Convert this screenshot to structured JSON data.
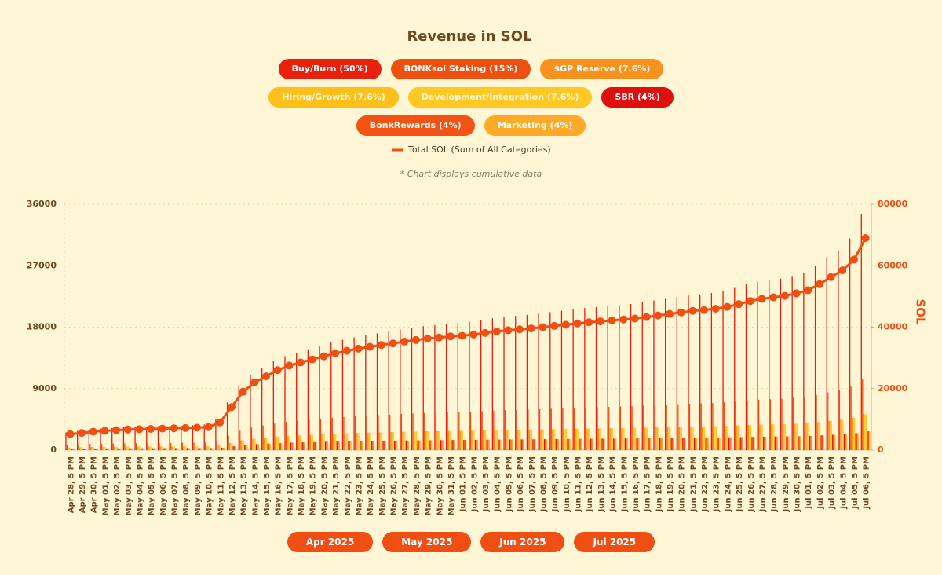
{
  "chart_data": {
    "type": "bar",
    "title": "Revenue in SOL",
    "note": "* Chart displays cumulative data",
    "y2_label": "SOL",
    "categories": [
      "Apr 28, 5 PM",
      "Apr 29, 5 PM",
      "Apr 30, 5 PM",
      "May 01, 5 PM",
      "May 02, 5 PM",
      "May 03, 5 PM",
      "May 04, 5 PM",
      "May 05, 5 PM",
      "May 06, 5 PM",
      "May 07, 5 PM",
      "May 08, 5 PM",
      "May 09, 5 PM",
      "May 10, 5 PM",
      "May 11, 5 PM",
      "May 12, 5 PM",
      "May 13, 5 PM",
      "May 14, 5 PM",
      "May 15, 5 PM",
      "May 16, 5 PM",
      "May 17, 5 PM",
      "May 18, 5 PM",
      "May 19, 5 PM",
      "May 20, 5 PM",
      "May 21, 5 PM",
      "May 22, 5 PM",
      "May 23, 5 PM",
      "May 24, 5 PM",
      "May 25, 5 PM",
      "May 26, 5 PM",
      "May 27, 5 PM",
      "May 28, 5 PM",
      "May 29, 5 PM",
      "May 30, 5 PM",
      "May 31, 5 PM",
      "Jun 01, 5 PM",
      "Jun 02, 5 PM",
      "Jun 03, 5 PM",
      "Jun 04, 5 PM",
      "Jun 05, 5 PM",
      "Jun 06, 5 PM",
      "Jun 07, 5 PM",
      "Jun 08, 5 PM",
      "Jun 09, 5 PM",
      "Jun 10, 5 PM",
      "Jun 11, 5 PM",
      "Jun 12, 5 PM",
      "Jun 13, 5 PM",
      "Jun 14, 5 PM",
      "Jun 15, 5 PM",
      "Jun 16, 5 PM",
      "Jun 17, 5 PM",
      "Jun 18, 5 PM",
      "Jun 19, 5 PM",
      "Jun 20, 5 PM",
      "Jun 21, 5 PM",
      "Jun 22, 5 PM",
      "Jun 23, 5 PM",
      "Jun 24, 5 PM",
      "Jun 25, 5 PM",
      "Jun 26, 5 PM",
      "Jun 27, 5 PM",
      "Jun 28, 5 PM",
      "Jun 29, 5 PM",
      "Jun 30, 5 PM",
      "Jul 01, 5 PM",
      "Jul 02, 5 PM",
      "Jul 03, 5 PM",
      "Jul 04, 5 PM",
      "Jul 05, 5 PM",
      "Jul 06, 5 PM"
    ],
    "series": [
      {
        "name": "Buy/Burn (50%)",
        "color": "#e8200c",
        "values": [
          2600,
          2800,
          3000,
          3150,
          3250,
          3350,
          3400,
          3450,
          3500,
          3550,
          3600,
          3650,
          3750,
          4500,
          7000,
          9500,
          11000,
          12000,
          13000,
          13750,
          14250,
          14750,
          15250,
          15750,
          16150,
          16500,
          16800,
          17100,
          17350,
          17650,
          17900,
          18150,
          18300,
          18500,
          18600,
          18800,
          19050,
          19300,
          19500,
          19650,
          19800,
          20000,
          20200,
          20400,
          20600,
          20800,
          20950,
          21100,
          21250,
          21400,
          21650,
          21900,
          22150,
          22400,
          22650,
          22800,
          23000,
          23300,
          23750,
          24250,
          24600,
          24850,
          25100,
          25500,
          26000,
          27000,
          28150,
          29250,
          31000,
          34500
        ]
      },
      {
        "name": "BONKsol Staking (15%)",
        "color": "#f0500f",
        "values": [
          780,
          840,
          900,
          945,
          975,
          1005,
          1020,
          1035,
          1050,
          1065,
          1080,
          1095,
          1125,
          1350,
          2100,
          2850,
          3300,
          3600,
          3900,
          4125,
          4275,
          4425,
          4575,
          4725,
          4845,
          4950,
          5040,
          5130,
          5205,
          5295,
          5370,
          5445,
          5490,
          5550,
          5580,
          5640,
          5715,
          5790,
          5850,
          5895,
          5940,
          6000,
          6060,
          6120,
          6180,
          6240,
          6285,
          6330,
          6375,
          6420,
          6495,
          6570,
          6645,
          6720,
          6795,
          6840,
          6900,
          6990,
          7125,
          7275,
          7380,
          7455,
          7530,
          7650,
          7800,
          8100,
          8445,
          8775,
          9300,
          10350
        ]
      },
      {
        "name": "$GP Reserve (7.6%)",
        "color": "#f7921e",
        "values": [
          395,
          426,
          456,
          479,
          494,
          509,
          517,
          524,
          532,
          540,
          547,
          555,
          570,
          684,
          1064,
          1444,
          1672,
          1824,
          1976,
          2090,
          2166,
          2242,
          2318,
          2394,
          2455,
          2508,
          2554,
          2599,
          2637,
          2683,
          2721,
          2759,
          2782,
          2812,
          2827,
          2858,
          2896,
          2934,
          2964,
          2987,
          3010,
          3040,
          3070,
          3101,
          3131,
          3162,
          3184,
          3207,
          3230,
          3253,
          3291,
          3329,
          3367,
          3405,
          3443,
          3466,
          3496,
          3542,
          3610,
          3686,
          3739,
          3777,
          3815,
          3876,
          3952,
          4104,
          4279,
          4446,
          4712,
          5244
        ]
      },
      {
        "name": "Hiring/Growth (7.6%)",
        "color": "#fdc01b",
        "values": [
          395,
          426,
          456,
          479,
          494,
          509,
          517,
          524,
          532,
          540,
          547,
          555,
          570,
          684,
          1064,
          1444,
          1672,
          1824,
          1976,
          2090,
          2166,
          2242,
          2318,
          2394,
          2455,
          2508,
          2554,
          2599,
          2637,
          2683,
          2721,
          2759,
          2782,
          2812,
          2827,
          2858,
          2896,
          2934,
          2964,
          2987,
          3010,
          3040,
          3070,
          3101,
          3131,
          3162,
          3184,
          3207,
          3230,
          3253,
          3291,
          3329,
          3367,
          3405,
          3443,
          3466,
          3496,
          3542,
          3610,
          3686,
          3739,
          3777,
          3815,
          3876,
          3952,
          4104,
          4279,
          4446,
          4712,
          5244
        ]
      },
      {
        "name": "Development/Integration (7.6%)",
        "color": "#ffc823",
        "values": [
          395,
          426,
          456,
          479,
          494,
          509,
          517,
          524,
          532,
          540,
          547,
          555,
          570,
          684,
          1064,
          1444,
          1672,
          1824,
          1976,
          2090,
          2166,
          2242,
          2318,
          2394,
          2455,
          2508,
          2554,
          2599,
          2637,
          2683,
          2721,
          2759,
          2782,
          2812,
          2827,
          2858,
          2896,
          2934,
          2964,
          2987,
          3010,
          3040,
          3070,
          3101,
          3131,
          3162,
          3184,
          3207,
          3230,
          3253,
          3291,
          3329,
          3367,
          3405,
          3443,
          3466,
          3496,
          3542,
          3610,
          3686,
          3739,
          3777,
          3815,
          3876,
          3952,
          4104,
          4279,
          4446,
          4712,
          5244
        ]
      },
      {
        "name": "SBR (4%)",
        "color": "#df0f10",
        "values": [
          208,
          224,
          240,
          252,
          260,
          268,
          272,
          276,
          280,
          284,
          288,
          292,
          300,
          360,
          560,
          760,
          880,
          960,
          1040,
          1100,
          1140,
          1180,
          1220,
          1260,
          1292,
          1320,
          1344,
          1368,
          1388,
          1412,
          1432,
          1452,
          1464,
          1480,
          1488,
          1504,
          1524,
          1544,
          1560,
          1572,
          1584,
          1600,
          1616,
          1632,
          1648,
          1664,
          1676,
          1688,
          1700,
          1712,
          1732,
          1752,
          1772,
          1792,
          1812,
          1824,
          1840,
          1864,
          1900,
          1940,
          1968,
          1988,
          2008,
          2040,
          2080,
          2160,
          2252,
          2340,
          2480,
          2760
        ]
      },
      {
        "name": "BonkRewards (4%)",
        "color": "#f25313",
        "values": [
          208,
          224,
          240,
          252,
          260,
          268,
          272,
          276,
          280,
          284,
          288,
          292,
          300,
          360,
          560,
          760,
          880,
          960,
          1040,
          1100,
          1140,
          1180,
          1220,
          1260,
          1292,
          1320,
          1344,
          1368,
          1388,
          1412,
          1432,
          1452,
          1464,
          1480,
          1488,
          1504,
          1524,
          1544,
          1560,
          1572,
          1584,
          1600,
          1616,
          1632,
          1648,
          1664,
          1676,
          1688,
          1700,
          1712,
          1732,
          1752,
          1772,
          1792,
          1812,
          1824,
          1840,
          1864,
          1900,
          1940,
          1968,
          1988,
          2008,
          2040,
          2080,
          2160,
          2252,
          2340,
          2480,
          2760
        ]
      },
      {
        "name": "Marketing (4%)",
        "color": "#ffa927",
        "values": [
          208,
          224,
          240,
          252,
          260,
          268,
          272,
          276,
          280,
          284,
          288,
          292,
          300,
          360,
          560,
          760,
          880,
          960,
          1040,
          1100,
          1140,
          1180,
          1220,
          1260,
          1292,
          1320,
          1344,
          1368,
          1388,
          1412,
          1432,
          1452,
          1464,
          1480,
          1488,
          1504,
          1524,
          1544,
          1560,
          1572,
          1584,
          1600,
          1616,
          1632,
          1648,
          1664,
          1676,
          1688,
          1700,
          1712,
          1732,
          1752,
          1772,
          1792,
          1812,
          1824,
          1840,
          1864,
          1900,
          1940,
          1968,
          1988,
          2008,
          2040,
          2080,
          2160,
          2252,
          2340,
          2480,
          2760
        ]
      },
      {
        "name": "Total SOL (Sum of All Categories)",
        "color": "#f04e12",
        "type": "line",
        "axis": "y2",
        "values": [
          5200,
          5600,
          6000,
          6300,
          6500,
          6700,
          6800,
          6900,
          7000,
          7100,
          7200,
          7300,
          7500,
          9000,
          14000,
          19000,
          22000,
          24000,
          26000,
          27500,
          28500,
          29500,
          30500,
          31500,
          32300,
          33000,
          33600,
          34200,
          34700,
          35300,
          35800,
          36300,
          36600,
          37000,
          37200,
          37600,
          38100,
          38600,
          39000,
          39300,
          39600,
          40000,
          40400,
          40800,
          41200,
          41600,
          41900,
          42200,
          42500,
          42800,
          43300,
          43800,
          44300,
          44800,
          45300,
          45600,
          46000,
          46600,
          47500,
          48500,
          49200,
          49700,
          50200,
          51000,
          52000,
          54000,
          56300,
          58500,
          62000,
          69000
        ]
      }
    ],
    "ylim": [
      0,
      36000
    ],
    "yticks": [
      0,
      9000,
      18000,
      27000,
      36000
    ],
    "y2lim": [
      0,
      80000
    ],
    "y2ticks": [
      0,
      20000,
      40000,
      60000,
      80000
    ],
    "grid": true,
    "range_buttons": [
      "Apr 2025",
      "May 2025",
      "Jun 2025",
      "Jul 2025"
    ]
  }
}
